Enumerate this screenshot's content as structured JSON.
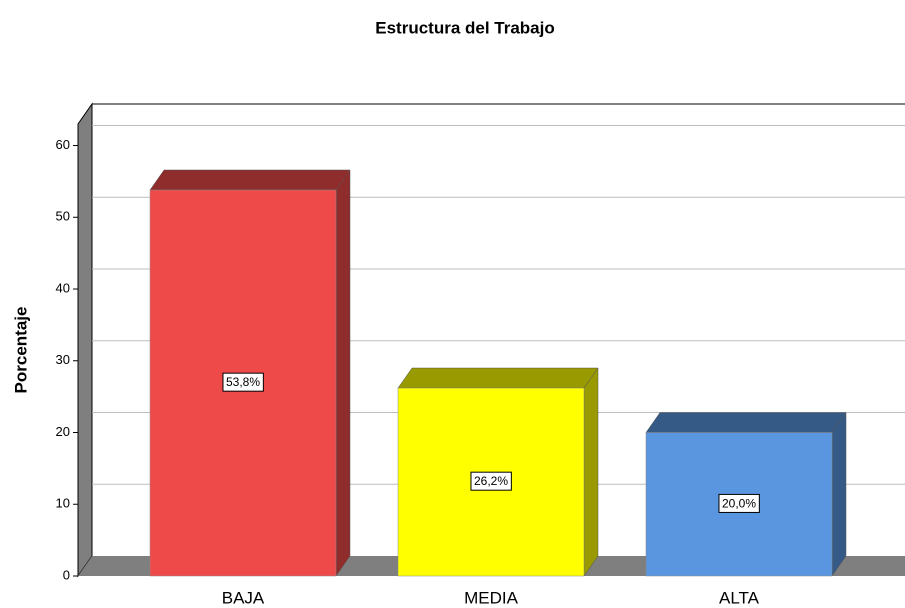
{
  "chart_data": {
    "type": "bar",
    "title": "Estructura del Trabajo",
    "y_label": "Porcentaje",
    "categories": [
      "BAJA",
      "MEDIA",
      "ALTA"
    ],
    "values": [
      53.8,
      26.2,
      20.0
    ],
    "value_labels": [
      "53,8%",
      "26,2%",
      "20,0%"
    ],
    "colors": [
      "#ef4a4a",
      "#ffff00",
      "#5a96e0"
    ],
    "ylim": [
      0,
      63
    ],
    "yticks": [
      0,
      10,
      20,
      30,
      40,
      50,
      60
    ],
    "grid": true
  }
}
